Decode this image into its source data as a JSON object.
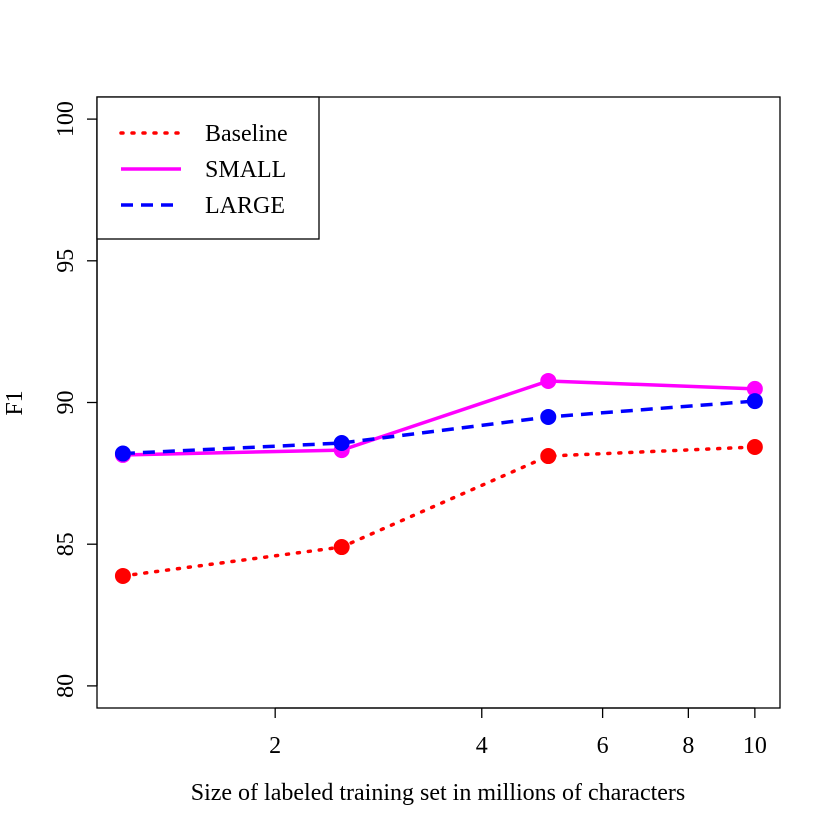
{
  "chart_data": {
    "type": "line",
    "x_label": "Size of labeled training set in millions of characters",
    "y_label": "F1",
    "x_scale": "log",
    "x": [
      1.2,
      2.5,
      5,
      10
    ],
    "series": [
      {
        "name": "Baseline",
        "color": "#ff0000",
        "line_style": "dotted",
        "values": [
          83.88,
          84.9,
          88.11,
          88.43
        ]
      },
      {
        "name": "SMALL",
        "color": "#ff00ff",
        "line_style": "solid",
        "values": [
          88.15,
          88.32,
          90.76,
          90.48
        ]
      },
      {
        "name": "LARGE",
        "color": "#0000ff",
        "line_style": "dashed",
        "values": [
          88.2,
          88.57,
          89.49,
          90.05
        ]
      }
    ],
    "xlim": [
      1.1,
      10.88
    ],
    "ylim": [
      79.22,
      100.78
    ],
    "xticks": [
      2,
      4,
      6,
      8,
      10
    ],
    "yticks": [
      80,
      85,
      90,
      95,
      100
    ],
    "legend": "top-left"
  }
}
